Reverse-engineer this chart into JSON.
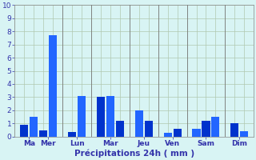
{
  "bar_positions": [
    1,
    2,
    3,
    4,
    6,
    7,
    9,
    10,
    11,
    13,
    14,
    16,
    17,
    19,
    20,
    21,
    23,
    24
  ],
  "bar_values": [
    0.9,
    1.5,
    0.5,
    7.7,
    0.35,
    3.1,
    3.0,
    3.1,
    1.2,
    2.0,
    1.2,
    0.3,
    0.6,
    0.6,
    1.2,
    1.5,
    1.0,
    0.4
  ],
  "bar_color_a": "#0033cc",
  "bar_color_b": "#2266ff",
  "day_labels": [
    "Ma",
    "Mer",
    "Lun",
    "Mar",
    "Jeu",
    "Ven",
    "Sam",
    "Dim"
  ],
  "day_x": [
    1.5,
    3.5,
    6.5,
    10.0,
    13.5,
    16.5,
    20.0,
    23.5
  ],
  "sep_x": [
    5.0,
    8.0,
    12.0,
    15.0,
    18.0,
    22.0
  ],
  "xlabel": "Précipitations 24h ( mm )",
  "ylim": [
    0,
    10
  ],
  "yticks": [
    0,
    1,
    2,
    3,
    4,
    5,
    6,
    7,
    8,
    9,
    10
  ],
  "xlim": [
    0,
    25
  ],
  "background_color": "#d8f4f4",
  "grid_color": "#b0c8b0",
  "text_color": "#3333aa",
  "bar_width": 0.85
}
